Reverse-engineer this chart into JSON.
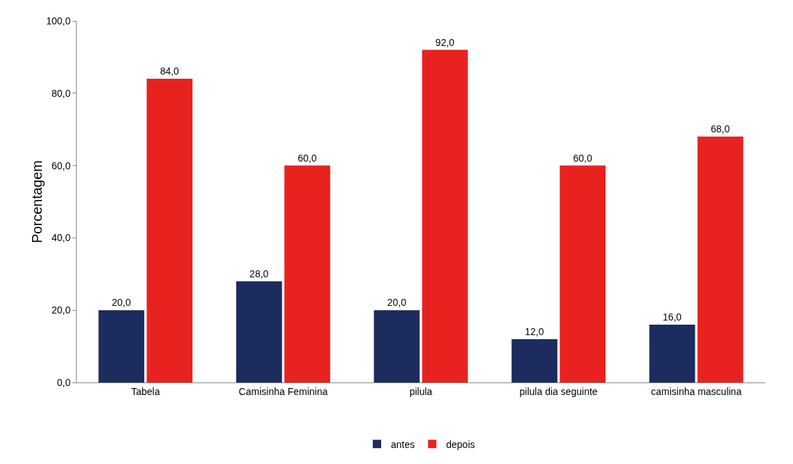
{
  "chart_data": {
    "type": "bar",
    "ylabel": "Porcentagem",
    "categories": [
      "Tabela",
      "Camisinha Feminina",
      "pilula",
      "pilula dia seguinte",
      "camisinha masculina"
    ],
    "series": [
      {
        "name": "antes",
        "color": "#1c2c5e",
        "values": [
          20,
          28,
          20,
          12,
          16
        ],
        "value_labels": [
          "20,0",
          "28,0",
          "20,0",
          "12,0",
          "16,0"
        ]
      },
      {
        "name": "depois",
        "color": "#e8231f",
        "values": [
          84,
          60,
          92,
          60,
          68
        ],
        "value_labels": [
          "84,0",
          "60,0",
          "92,0",
          "60,0",
          "68,0"
        ]
      }
    ],
    "ylim": [
      0,
      100
    ],
    "yticks": [
      {
        "value": 0,
        "label": "0,0"
      },
      {
        "value": 20,
        "label": "20,0"
      },
      {
        "value": 40,
        "label": "40,0"
      },
      {
        "value": 60,
        "label": "60,0"
      },
      {
        "value": 80,
        "label": "80,0"
      },
      {
        "value": 100,
        "label": "100,0"
      }
    ],
    "grid": false,
    "legend": "bottom"
  }
}
